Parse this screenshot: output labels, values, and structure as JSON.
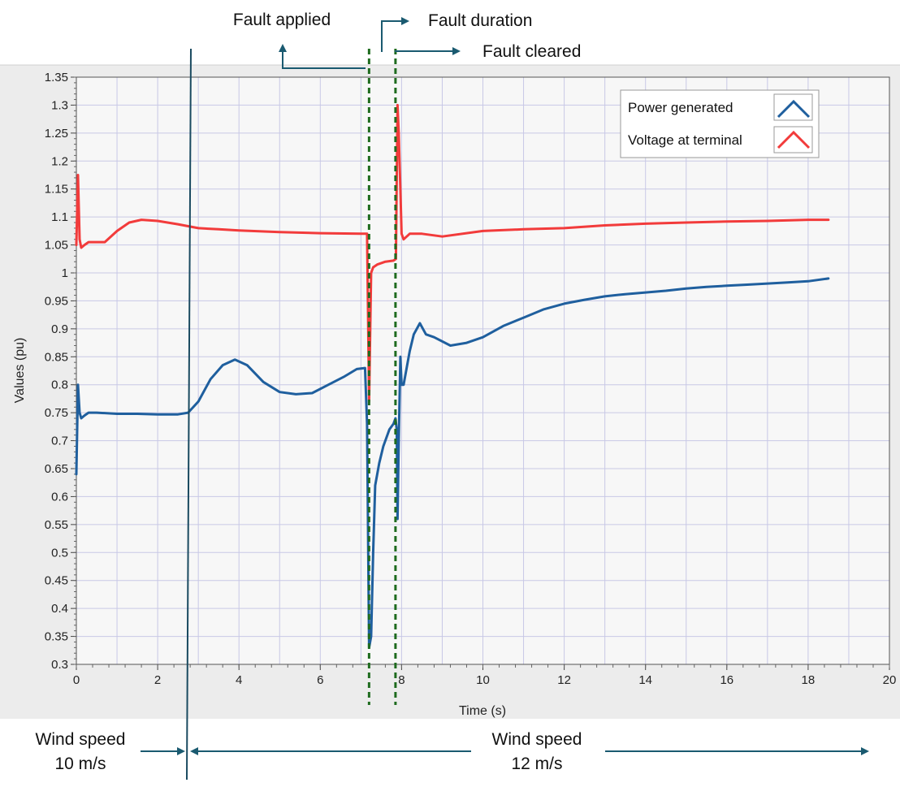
{
  "chart_data": {
    "type": "line",
    "xlabel": "Time (s)",
    "ylabel": "Values (pu)",
    "xlim": [
      0,
      20
    ],
    "ylim": [
      0.3,
      1.35
    ],
    "x_ticks": [
      "0",
      "2",
      "4",
      "6",
      "8",
      "10",
      "12",
      "14",
      "16",
      "18",
      "20"
    ],
    "y_ticks": [
      "0.3",
      "0.35",
      "0.4",
      "0.45",
      "0.5",
      "0.55",
      "0.6",
      "0.65",
      "0.7",
      "0.75",
      "0.8",
      "0.85",
      "0.9",
      "0.95",
      "1",
      "1.05",
      "1.1",
      "1.15",
      "1.2",
      "1.25",
      "1.3",
      "1.35"
    ],
    "grid": true,
    "legend_position": "top-right",
    "series": [
      {
        "name": "Power generated",
        "color": "#1f5f9e",
        "x": [
          0,
          0.04,
          0.08,
          0.12,
          0.2,
          0.3,
          0.5,
          1,
          1.5,
          2,
          2.5,
          2.75,
          3,
          3.3,
          3.6,
          3.9,
          4.2,
          4.6,
          5,
          5.4,
          5.8,
          6.2,
          6.6,
          6.9,
          7.1,
          7.15,
          7.2,
          7.25,
          7.3,
          7.35,
          7.45,
          7.55,
          7.7,
          7.8,
          7.85,
          7.88,
          7.9,
          7.93,
          7.97,
          8.0,
          8.05,
          8.1,
          8.2,
          8.3,
          8.45,
          8.6,
          8.8,
          9.2,
          9.6,
          10,
          10.5,
          11,
          11.5,
          12,
          12.5,
          13,
          13.5,
          14,
          14.5,
          15,
          15.5,
          16,
          16.5,
          17,
          17.5,
          18,
          18.5
        ],
        "y": [
          0.64,
          0.8,
          0.75,
          0.74,
          0.745,
          0.75,
          0.75,
          0.748,
          0.748,
          0.747,
          0.747,
          0.75,
          0.77,
          0.81,
          0.835,
          0.845,
          0.835,
          0.805,
          0.787,
          0.783,
          0.785,
          0.8,
          0.815,
          0.828,
          0.83,
          0.73,
          0.33,
          0.35,
          0.5,
          0.62,
          0.66,
          0.69,
          0.72,
          0.73,
          0.74,
          0.72,
          0.56,
          0.7,
          0.85,
          0.8,
          0.8,
          0.82,
          0.86,
          0.89,
          0.91,
          0.89,
          0.885,
          0.87,
          0.875,
          0.885,
          0.905,
          0.92,
          0.935,
          0.945,
          0.952,
          0.958,
          0.962,
          0.965,
          0.968,
          0.972,
          0.975,
          0.977,
          0.979,
          0.981,
          0.983,
          0.985,
          0.99
        ]
      },
      {
        "name": "Voltage at terminal",
        "color": "#f23b3b",
        "x": [
          0,
          0.04,
          0.08,
          0.12,
          0.2,
          0.3,
          0.5,
          0.7,
          1,
          1.3,
          1.6,
          2,
          2.5,
          3,
          3.5,
          4,
          5,
          6,
          7,
          7.15,
          7.2,
          7.25,
          7.3,
          7.4,
          7.6,
          7.8,
          7.86,
          7.9,
          7.93,
          7.97,
          8.0,
          8.05,
          8.2,
          8.5,
          9,
          10,
          11,
          12,
          13,
          14,
          15,
          16,
          17,
          18,
          18.5
        ],
        "y": [
          1.05,
          1.175,
          1.06,
          1.045,
          1.05,
          1.055,
          1.055,
          1.055,
          1.075,
          1.09,
          1.095,
          1.093,
          1.087,
          1.08,
          1.078,
          1.076,
          1.073,
          1.071,
          1.07,
          1.07,
          0.77,
          1.0,
          1.01,
          1.015,
          1.02,
          1.022,
          1.025,
          1.3,
          1.25,
          1.15,
          1.07,
          1.06,
          1.07,
          1.07,
          1.065,
          1.075,
          1.078,
          1.08,
          1.085,
          1.088,
          1.09,
          1.092,
          1.093,
          1.095,
          1.095
        ]
      }
    ],
    "legend": {
      "entries": [
        "Power generated",
        "Voltage at terminal"
      ]
    },
    "annotations": {
      "fault_applied": "Fault applied",
      "fault_duration": "Fault duration",
      "fault_cleared": "Fault cleared",
      "wind_speed_left_line1": "Wind speed",
      "wind_speed_left_line2": "10 m/s",
      "wind_speed_right_line1": "Wind speed",
      "wind_speed_right_line2": "12 m/s"
    },
    "markers": {
      "fault_applied_time": 7.2,
      "fault_cleared_time": 7.85,
      "wind_change_time": 2.75
    },
    "colors": {
      "plot_background": "#f7f7f7",
      "grid": "#c8c8e6",
      "annotation": "#1a5a70",
      "fault_lines": "#1e6b1e"
    }
  }
}
